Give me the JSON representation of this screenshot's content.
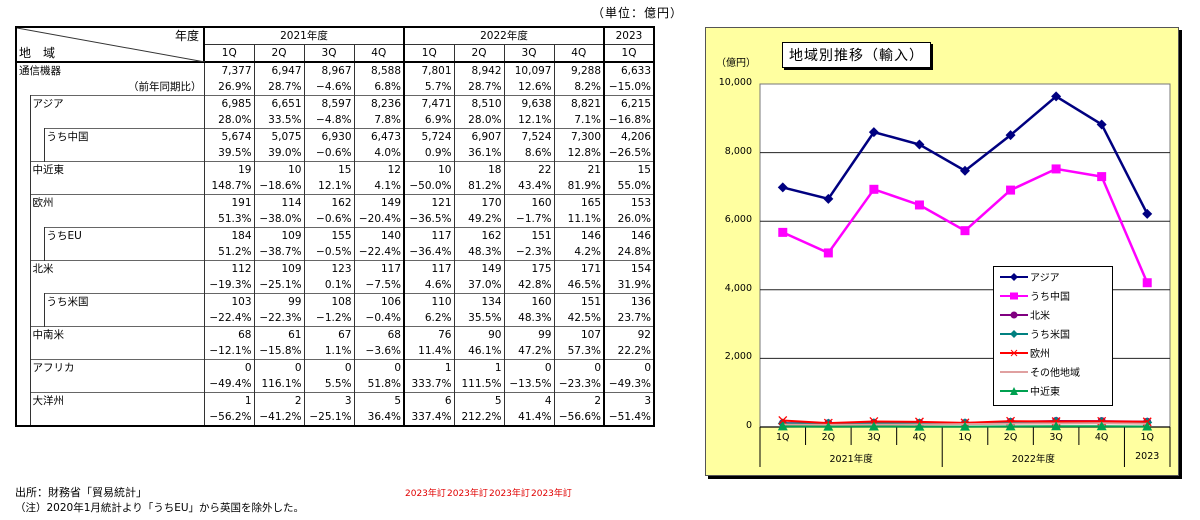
{
  "table": {
    "unit_label": "（単位：億円）",
    "header": {
      "corner_top": "年度",
      "corner_bottom": "地　域",
      "years": [
        {
          "label": "2021年度",
          "span": 4
        },
        {
          "label": "2022年度",
          "span": 4
        },
        {
          "label": "2023",
          "span": 1
        }
      ],
      "quarters": [
        "1Q",
        "2Q",
        "3Q",
        "4Q",
        "1Q",
        "2Q",
        "3Q",
        "4Q",
        "1Q"
      ]
    },
    "rows": [
      {
        "label": "通信機器",
        "sublabel": "（前年同期比）",
        "level": 0,
        "values": [
          "7,377",
          "6,947",
          "8,967",
          "8,588",
          "7,801",
          "8,942",
          "10,097",
          "9,288",
          "6,633"
        ],
        "yoy": [
          "26.9%",
          "28.7%",
          "−4.6%",
          "6.8%",
          "5.7%",
          "28.7%",
          "12.6%",
          "8.2%",
          "−15.0%"
        ]
      },
      {
        "label": "アジア",
        "level": 1,
        "values": [
          "6,985",
          "6,651",
          "8,597",
          "8,236",
          "7,471",
          "8,510",
          "9,638",
          "8,821",
          "6,215"
        ],
        "yoy": [
          "28.0%",
          "33.5%",
          "−4.8%",
          "7.8%",
          "6.9%",
          "28.0%",
          "12.1%",
          "7.1%",
          "−16.8%"
        ]
      },
      {
        "label": "うち中国",
        "level": 2,
        "values": [
          "5,674",
          "5,075",
          "6,930",
          "6,473",
          "5,724",
          "6,907",
          "7,524",
          "7,300",
          "4,206"
        ],
        "yoy": [
          "39.5%",
          "39.0%",
          "−0.6%",
          "4.0%",
          "0.9%",
          "36.1%",
          "8.6%",
          "12.8%",
          "−26.5%"
        ]
      },
      {
        "label": "中近東",
        "level": 1,
        "values": [
          "19",
          "10",
          "15",
          "12",
          "10",
          "18",
          "22",
          "21",
          "15"
        ],
        "yoy": [
          "148.7%",
          "−18.6%",
          "12.1%",
          "4.1%",
          "−50.0%",
          "81.2%",
          "43.4%",
          "81.9%",
          "55.0%"
        ]
      },
      {
        "label": "欧州",
        "level": 1,
        "values": [
          "191",
          "114",
          "162",
          "149",
          "121",
          "170",
          "160",
          "165",
          "153"
        ],
        "yoy": [
          "51.3%",
          "−38.0%",
          "−0.6%",
          "−20.4%",
          "−36.5%",
          "49.2%",
          "−1.7%",
          "11.1%",
          "26.0%"
        ]
      },
      {
        "label": "うちEU",
        "level": 2,
        "values": [
          "184",
          "109",
          "155",
          "140",
          "117",
          "162",
          "151",
          "146",
          "146"
        ],
        "yoy": [
          "51.2%",
          "−38.7%",
          "−0.5%",
          "−22.4%",
          "−36.4%",
          "48.3%",
          "−2.3%",
          "4.2%",
          "24.8%"
        ]
      },
      {
        "label": "北米",
        "level": 1,
        "values": [
          "112",
          "109",
          "123",
          "117",
          "117",
          "149",
          "175",
          "171",
          "154"
        ],
        "yoy": [
          "−19.3%",
          "−25.1%",
          "0.1%",
          "−7.5%",
          "4.6%",
          "37.0%",
          "42.8%",
          "46.5%",
          "31.9%"
        ]
      },
      {
        "label": "うち米国",
        "level": 2,
        "values": [
          "103",
          "99",
          "108",
          "106",
          "110",
          "134",
          "160",
          "151",
          "136"
        ],
        "yoy": [
          "−22.4%",
          "−22.3%",
          "−1.2%",
          "−0.4%",
          "6.2%",
          "35.5%",
          "48.3%",
          "42.5%",
          "23.7%"
        ]
      },
      {
        "label": "中南米",
        "level": 1,
        "values": [
          "68",
          "61",
          "67",
          "68",
          "76",
          "90",
          "99",
          "107",
          "92"
        ],
        "yoy": [
          "−12.1%",
          "−15.8%",
          "1.1%",
          "−3.6%",
          "11.4%",
          "46.1%",
          "47.2%",
          "57.3%",
          "22.2%"
        ]
      },
      {
        "label": "アフリカ",
        "level": 1,
        "values": [
          "0",
          "0",
          "0",
          "0",
          "1",
          "1",
          "0",
          "0",
          "0"
        ],
        "yoy": [
          "−49.4%",
          "116.1%",
          "5.5%",
          "51.8%",
          "333.7%",
          "111.5%",
          "−13.5%",
          "−23.3%",
          "−49.3%"
        ]
      },
      {
        "label": "大洋州",
        "level": 1,
        "values": [
          "1",
          "2",
          "3",
          "5",
          "6",
          "5",
          "4",
          "2",
          "3"
        ],
        "yoy": [
          "−56.2%",
          "−41.2%",
          "−25.1%",
          "36.4%",
          "337.4%",
          "212.2%",
          "41.4%",
          "−56.6%",
          "−51.4%"
        ]
      }
    ],
    "revision_notes": [
      "2023年訂",
      "2023年訂",
      "2023年訂",
      "2023年訂"
    ],
    "source": "出所：財務省「貿易統計」",
    "note": "（注）2020年1月統計より「うちEU」から英国を除外した。"
  },
  "chart_data": {
    "type": "line",
    "title": "地域別推移（輸入）",
    "ylabel": "（億円）",
    "xlabel": "",
    "ylim": [
      0,
      10000
    ],
    "yticks": [
      "0",
      "2,000",
      "4,000",
      "6,000",
      "8,000",
      "10,000"
    ],
    "grid": true,
    "legend_position": "right-inside",
    "categories": [
      "1Q",
      "2Q",
      "3Q",
      "4Q",
      "1Q",
      "2Q",
      "3Q",
      "4Q",
      "1Q"
    ],
    "category_groups": [
      {
        "label": "2021年度",
        "span": 4
      },
      {
        "label": "2022年度",
        "span": 4
      },
      {
        "label": "2023",
        "span": 1
      }
    ],
    "series": [
      {
        "name": "アジア",
        "color": "#000080",
        "marker": "diamond",
        "values": [
          6985,
          6651,
          8597,
          8236,
          7471,
          8510,
          9638,
          8821,
          6215
        ]
      },
      {
        "name": "うち中国",
        "color": "#ff00ff",
        "marker": "square",
        "values": [
          5674,
          5075,
          6930,
          6473,
          5724,
          6907,
          7524,
          7300,
          4206
        ]
      },
      {
        "name": "北米",
        "color": "#800080",
        "marker": "circle",
        "values": [
          112,
          109,
          123,
          117,
          117,
          149,
          175,
          171,
          154
        ]
      },
      {
        "name": "うち米国",
        "color": "#008080",
        "marker": "diamond",
        "values": [
          103,
          99,
          108,
          106,
          110,
          134,
          160,
          151,
          136
        ]
      },
      {
        "name": "欧州",
        "color": "#ff0000",
        "marker": "x",
        "values": [
          191,
          114,
          162,
          149,
          121,
          170,
          160,
          165,
          153
        ]
      },
      {
        "name": "その他地域",
        "color": "#e0a0a0",
        "marker": "none",
        "values": [
          69,
          63,
          70,
          73,
          83,
          96,
          103,
          109,
          95
        ]
      },
      {
        "name": "中近東",
        "color": "#00a050",
        "marker": "triangle",
        "values": [
          19,
          10,
          15,
          12,
          10,
          18,
          22,
          21,
          15
        ]
      }
    ]
  }
}
